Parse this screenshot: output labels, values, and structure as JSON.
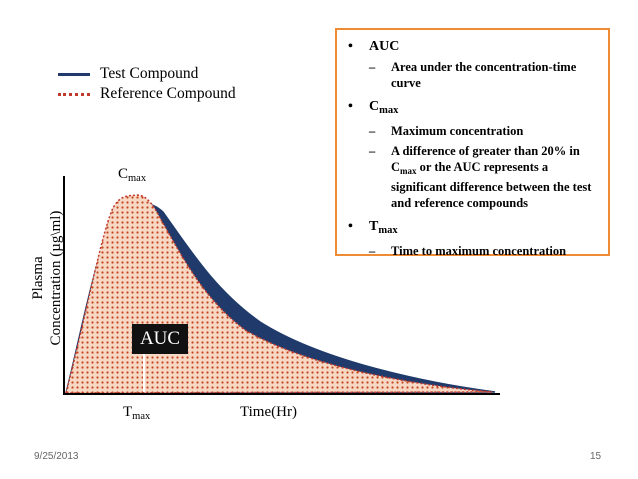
{
  "legend": {
    "test_label": "Test Compound",
    "reference_label": "Reference Compound"
  },
  "colors": {
    "test_curve": "#1f3a6b",
    "reference_curve": "#c0392b",
    "auc_fill": "#f3c9ad",
    "info_border": "#ef8b35"
  },
  "graph": {
    "cmax_base": "C",
    "cmax_sub": "max",
    "tmax_base": "T",
    "tmax_sub": "max",
    "x_label": "Time(Hr)",
    "y_label_line1": "Plasma",
    "y_label_line2": "Concentration (µg\\ml)",
    "auc_label": "AUC"
  },
  "info": {
    "auc": {
      "bullet": "•",
      "title": "AUC",
      "items": [
        "Area under the concentration-time curve"
      ]
    },
    "cmax": {
      "bullet": "•",
      "title_base": "C",
      "title_sub": "max",
      "item1": "Maximum concentration",
      "item2_a": "A difference of greater than 20% in C",
      "item2_sub": "max",
      "item2_b": " or the AUC represents a significant difference between the test and reference compounds"
    },
    "tmax": {
      "bullet": "•",
      "title_base": "T",
      "title_sub": "max",
      "item1": "Time to maximum concentration"
    },
    "dash": "–"
  },
  "footer": {
    "date": "9/25/2013",
    "page": "15"
  }
}
